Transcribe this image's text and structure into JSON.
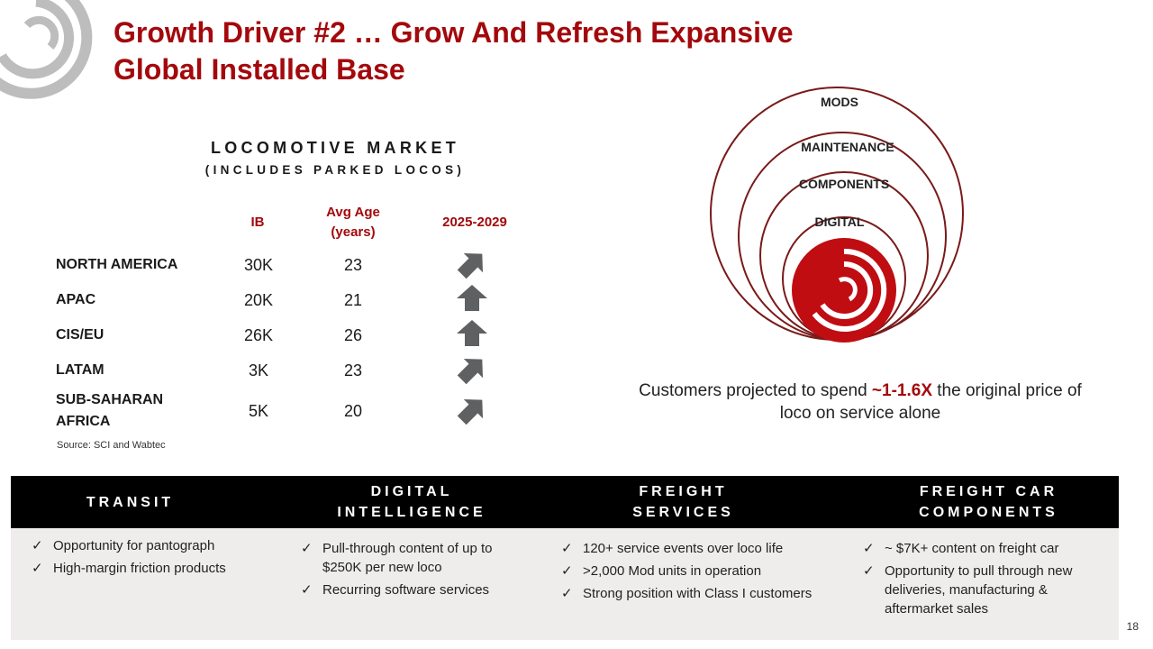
{
  "title": {
    "line1": "Growth Driver #2 … Grow And Refresh Expansive",
    "line2": "Global Installed Base"
  },
  "market": {
    "heading": "LOCOMOTIVE MARKET",
    "subheading": "(INCLUDES PARKED LOCOS)",
    "col_ib": "IB",
    "col_age_line1": "Avg Age",
    "col_age_line2": "(years)",
    "col_outlook": "2025-2029",
    "rows": [
      {
        "region": "NORTH AMERICA",
        "ib": "30K",
        "age": "23",
        "outlook": "up-right"
      },
      {
        "region": "APAC",
        "ib": "20K",
        "age": "21",
        "outlook": "up"
      },
      {
        "region": "CIS/EU",
        "ib": "26K",
        "age": "26",
        "outlook": "up"
      },
      {
        "region": "LATAM",
        "ib": "3K",
        "age": "23",
        "outlook": "up-right"
      },
      {
        "region_line1": "SUB-SAHARAN",
        "region_line2": "AFRICA",
        "ib": "5K",
        "age": "20",
        "outlook": "up-right"
      }
    ],
    "source": "Source: SCI and Wabtec"
  },
  "rings": {
    "mods": "MODS",
    "maintenance": "MAINTENANCE",
    "components": "COMPONENTS",
    "digital": "DIGITAL"
  },
  "caption": {
    "pre": "Customers projected to spend ",
    "highlight": "~1-1.6X",
    "post": " the original price of loco on service alone"
  },
  "segments": [
    {
      "title_line1": "TRANSIT",
      "bullets": [
        "Opportunity for pantograph",
        "High-margin friction products"
      ]
    },
    {
      "title_line1": "DIGITAL",
      "title_line2": "INTELLIGENCE",
      "bullets": [
        "Pull-through content of up to $250K per new loco",
        "Recurring software services"
      ]
    },
    {
      "title_line1": "FREIGHT",
      "title_line2": "SERVICES",
      "bullets": [
        "120+ service events over loco life",
        ">2,000 Mod units  in operation",
        "Strong position with Class I customers"
      ]
    },
    {
      "title_line1": "FREIGHT CAR",
      "title_line2": "COMPONENTS",
      "bullets": [
        "~ $7K+ content on freight car",
        "Opportunity to pull through new deliveries, manufacturing & aftermarket sales"
      ]
    }
  ],
  "check_glyph": "✓",
  "page_number": "18",
  "colors": {
    "brand_red": "#a3090c",
    "ring_stroke": "#7a1a1a",
    "arrow_gray": "#5f6062",
    "band_black": "#000000",
    "panel_gray": "#efecec"
  }
}
